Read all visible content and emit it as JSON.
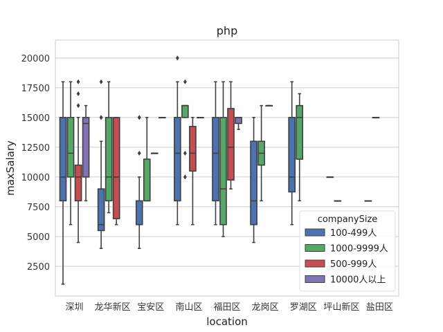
{
  "chart_data": {
    "type": "boxplot",
    "title": "php",
    "xlabel": "location",
    "ylabel": "maxSalary",
    "ylim": [
      0,
      21500
    ],
    "yticks": [
      2500,
      5000,
      7500,
      10000,
      12500,
      15000,
      17500,
      20000
    ],
    "grid": "horizontal",
    "legend": {
      "title": "companySize",
      "placement": "lower-right",
      "entries": [
        "100-499人",
        "1000-9999人",
        "500-999人",
        "10000人以上"
      ]
    },
    "series_colors": {
      "100-499人": "#4c72b0",
      "1000-9999人": "#55a868",
      "500-999人": "#c44e52",
      "10000人以上": "#8172b2"
    },
    "categories": [
      "深圳",
      "龙华新区",
      "宝安区",
      "南山区",
      "福田区",
      "龙岗区",
      "罗湖区",
      "坪山新区",
      "盐田区"
    ],
    "boxes": [
      {
        "category": "深圳",
        "series": "100-499人",
        "whisker_low": 1000,
        "q1": 8000,
        "median": 10000,
        "q3": 15000,
        "whisker_high": 18000,
        "outliers": []
      },
      {
        "category": "深圳",
        "series": "1000-9999人",
        "whisker_low": 6000,
        "q1": 10000,
        "median": 12000,
        "q3": 15000,
        "whisker_high": 18000,
        "outliers": []
      },
      {
        "category": "深圳",
        "series": "500-999人",
        "whisker_low": 4500,
        "q1": 8000,
        "median": 10000,
        "q3": 11000,
        "whisker_high": 15000,
        "outliers": [
          16000,
          17000,
          18000
        ]
      },
      {
        "category": "深圳",
        "series": "10000人以上",
        "whisker_low": 8000,
        "q1": 10000,
        "median": 14500,
        "q3": 15000,
        "whisker_high": 16000,
        "outliers": []
      },
      {
        "category": "龙华新区",
        "series": "100-499人",
        "whisker_low": 4000,
        "q1": 5500,
        "median": 6000,
        "q3": 9000,
        "whisker_high": 13000,
        "outliers": [
          15000,
          15000,
          18000
        ]
      },
      {
        "category": "龙华新区",
        "series": "1000-9999人",
        "whisker_low": 7000,
        "q1": 8000,
        "median": 10000,
        "q3": 15000,
        "whisker_high": 18000,
        "outliers": []
      },
      {
        "category": "龙华新区",
        "series": "500-999人",
        "whisker_low": 6000,
        "q1": 6500,
        "median": 10000,
        "q3": 15000,
        "whisker_high": 15000,
        "outliers": []
      },
      {
        "category": "宝安区",
        "series": "100-499人",
        "whisker_low": 4000,
        "q1": 6000,
        "median": 6000,
        "q3": 8000,
        "whisker_high": 10000,
        "outliers": [
          12000,
          15000,
          15000
        ]
      },
      {
        "category": "宝安区",
        "series": "1000-9999人",
        "whisker_low": 8000,
        "q1": 8000,
        "median": 8000,
        "q3": 11500,
        "whisker_high": 15000,
        "outliers": []
      },
      {
        "category": "宝安区",
        "series": "500-999人",
        "whisker_low": 12000,
        "q1": 12000,
        "median": 12000,
        "q3": 12000,
        "whisker_high": 12000,
        "outliers": []
      },
      {
        "category": "宝安区",
        "series": "10000人以上",
        "whisker_low": 15000,
        "q1": 15000,
        "median": 15000,
        "q3": 15000,
        "whisker_high": 15000,
        "outliers": []
      },
      {
        "category": "南山区",
        "series": "100-499人",
        "whisker_low": 6000,
        "q1": 8000,
        "median": 12000,
        "q3": 15000,
        "whisker_high": 18000,
        "outliers": [
          20000
        ]
      },
      {
        "category": "南山区",
        "series": "1000-9999人",
        "whisker_low": 15000,
        "q1": 15000,
        "median": 16000,
        "q3": 16000,
        "whisker_high": 16000,
        "outliers": [
          10000,
          12000,
          18000
        ]
      },
      {
        "category": "南山区",
        "series": "500-999人",
        "whisker_low": 6000,
        "q1": 10500,
        "median": 12000,
        "q3": 14250,
        "whisker_high": 15000,
        "outliers": []
      },
      {
        "category": "南山区",
        "series": "10000人以上",
        "whisker_low": 15000,
        "q1": 15000,
        "median": 15000,
        "q3": 15000,
        "whisker_high": 15000,
        "outliers": []
      },
      {
        "category": "福田区",
        "series": "100-499人",
        "whisker_low": 6000,
        "q1": 8000,
        "median": 12000,
        "q3": 15000,
        "whisker_high": 18000,
        "outliers": []
      },
      {
        "category": "福田区",
        "series": "1000-9999人",
        "whisker_low": 5000,
        "q1": 6000,
        "median": 9000,
        "q3": 15000,
        "whisker_high": 18000,
        "outliers": []
      },
      {
        "category": "福田区",
        "series": "500-999人",
        "whisker_low": 9000,
        "q1": 9750,
        "median": 12500,
        "q3": 15750,
        "whisker_high": 18000,
        "outliers": []
      },
      {
        "category": "福田区",
        "series": "10000人以上",
        "whisker_low": 14000,
        "q1": 14500,
        "median": 15000,
        "q3": 15000,
        "whisker_high": 15000,
        "outliers": []
      },
      {
        "category": "龙岗区",
        "series": "100-499人",
        "whisker_low": 4500,
        "q1": 6000,
        "median": 8000,
        "q3": 13000,
        "whisker_high": 15000,
        "outliers": []
      },
      {
        "category": "龙岗区",
        "series": "1000-9999人",
        "whisker_low": 8000,
        "q1": 11000,
        "median": 12000,
        "q3": 13000,
        "whisker_high": 16000,
        "outliers": []
      },
      {
        "category": "龙岗区",
        "series": "500-999人",
        "whisker_low": 16000,
        "q1": 16000,
        "median": 16000,
        "q3": 16000,
        "whisker_high": 16000,
        "outliers": []
      },
      {
        "category": "罗湖区",
        "series": "100-499人",
        "whisker_low": 6000,
        "q1": 8750,
        "median": 10000,
        "q3": 15000,
        "whisker_high": 18000,
        "outliers": []
      },
      {
        "category": "罗湖区",
        "series": "1000-9999人",
        "whisker_low": 8000,
        "q1": 11500,
        "median": 15000,
        "q3": 16000,
        "whisker_high": 17000,
        "outliers": []
      },
      {
        "category": "坪山新区",
        "series": "100-499人",
        "whisker_low": 10000,
        "q1": 10000,
        "median": 10000,
        "q3": 10000,
        "whisker_high": 10000,
        "outliers": []
      },
      {
        "category": "坪山新区",
        "series": "1000-9999人",
        "whisker_low": 8000,
        "q1": 8000,
        "median": 8000,
        "q3": 8000,
        "whisker_high": 8000,
        "outliers": []
      },
      {
        "category": "盐田区",
        "series": "100-499人",
        "whisker_low": 8000,
        "q1": 8000,
        "median": 8000,
        "q3": 8000,
        "whisker_high": 8000,
        "outliers": []
      },
      {
        "category": "盐田区",
        "series": "1000-9999人",
        "whisker_low": 15000,
        "q1": 15000,
        "median": 15000,
        "q3": 15000,
        "whisker_high": 15000,
        "outliers": []
      }
    ]
  }
}
